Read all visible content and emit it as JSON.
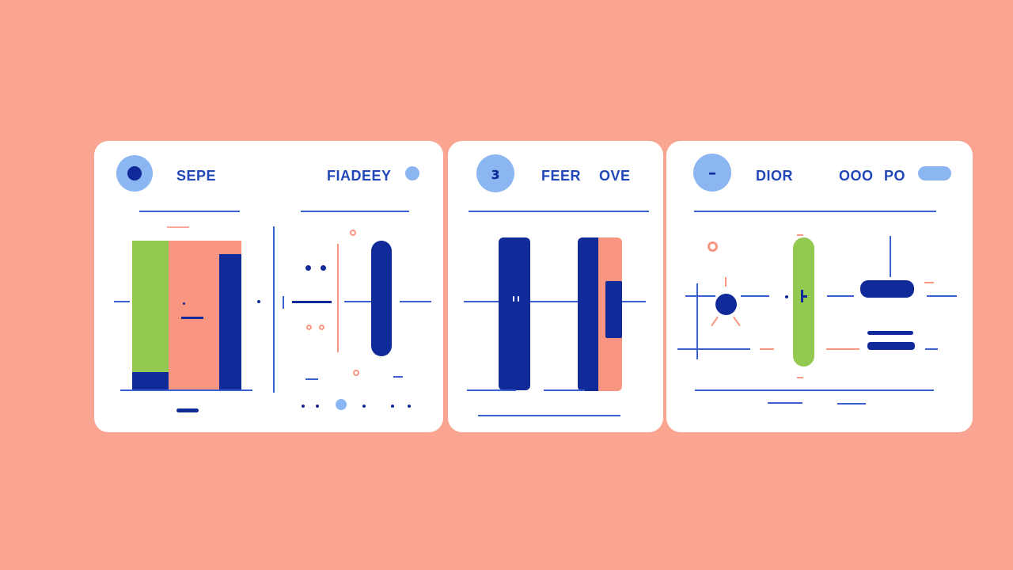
{
  "cards": [
    {
      "avatar_icon": "dot-icon",
      "labels": [
        "SEPE",
        "FIADEEY"
      ]
    },
    {
      "avatar_glyph": "ɜ",
      "labels": [
        "FEER",
        "OVE"
      ]
    },
    {
      "avatar_glyph": "–",
      "labels": [
        "DIOR",
        "OOO",
        "PO"
      ]
    }
  ],
  "colors": {
    "background": "#f9a592",
    "card": "#ffffff",
    "navy": "#102a9a",
    "blue": "#3b5fcf",
    "light_blue": "#8cb6f1",
    "green": "#93c851",
    "salmon": "#f99682"
  }
}
